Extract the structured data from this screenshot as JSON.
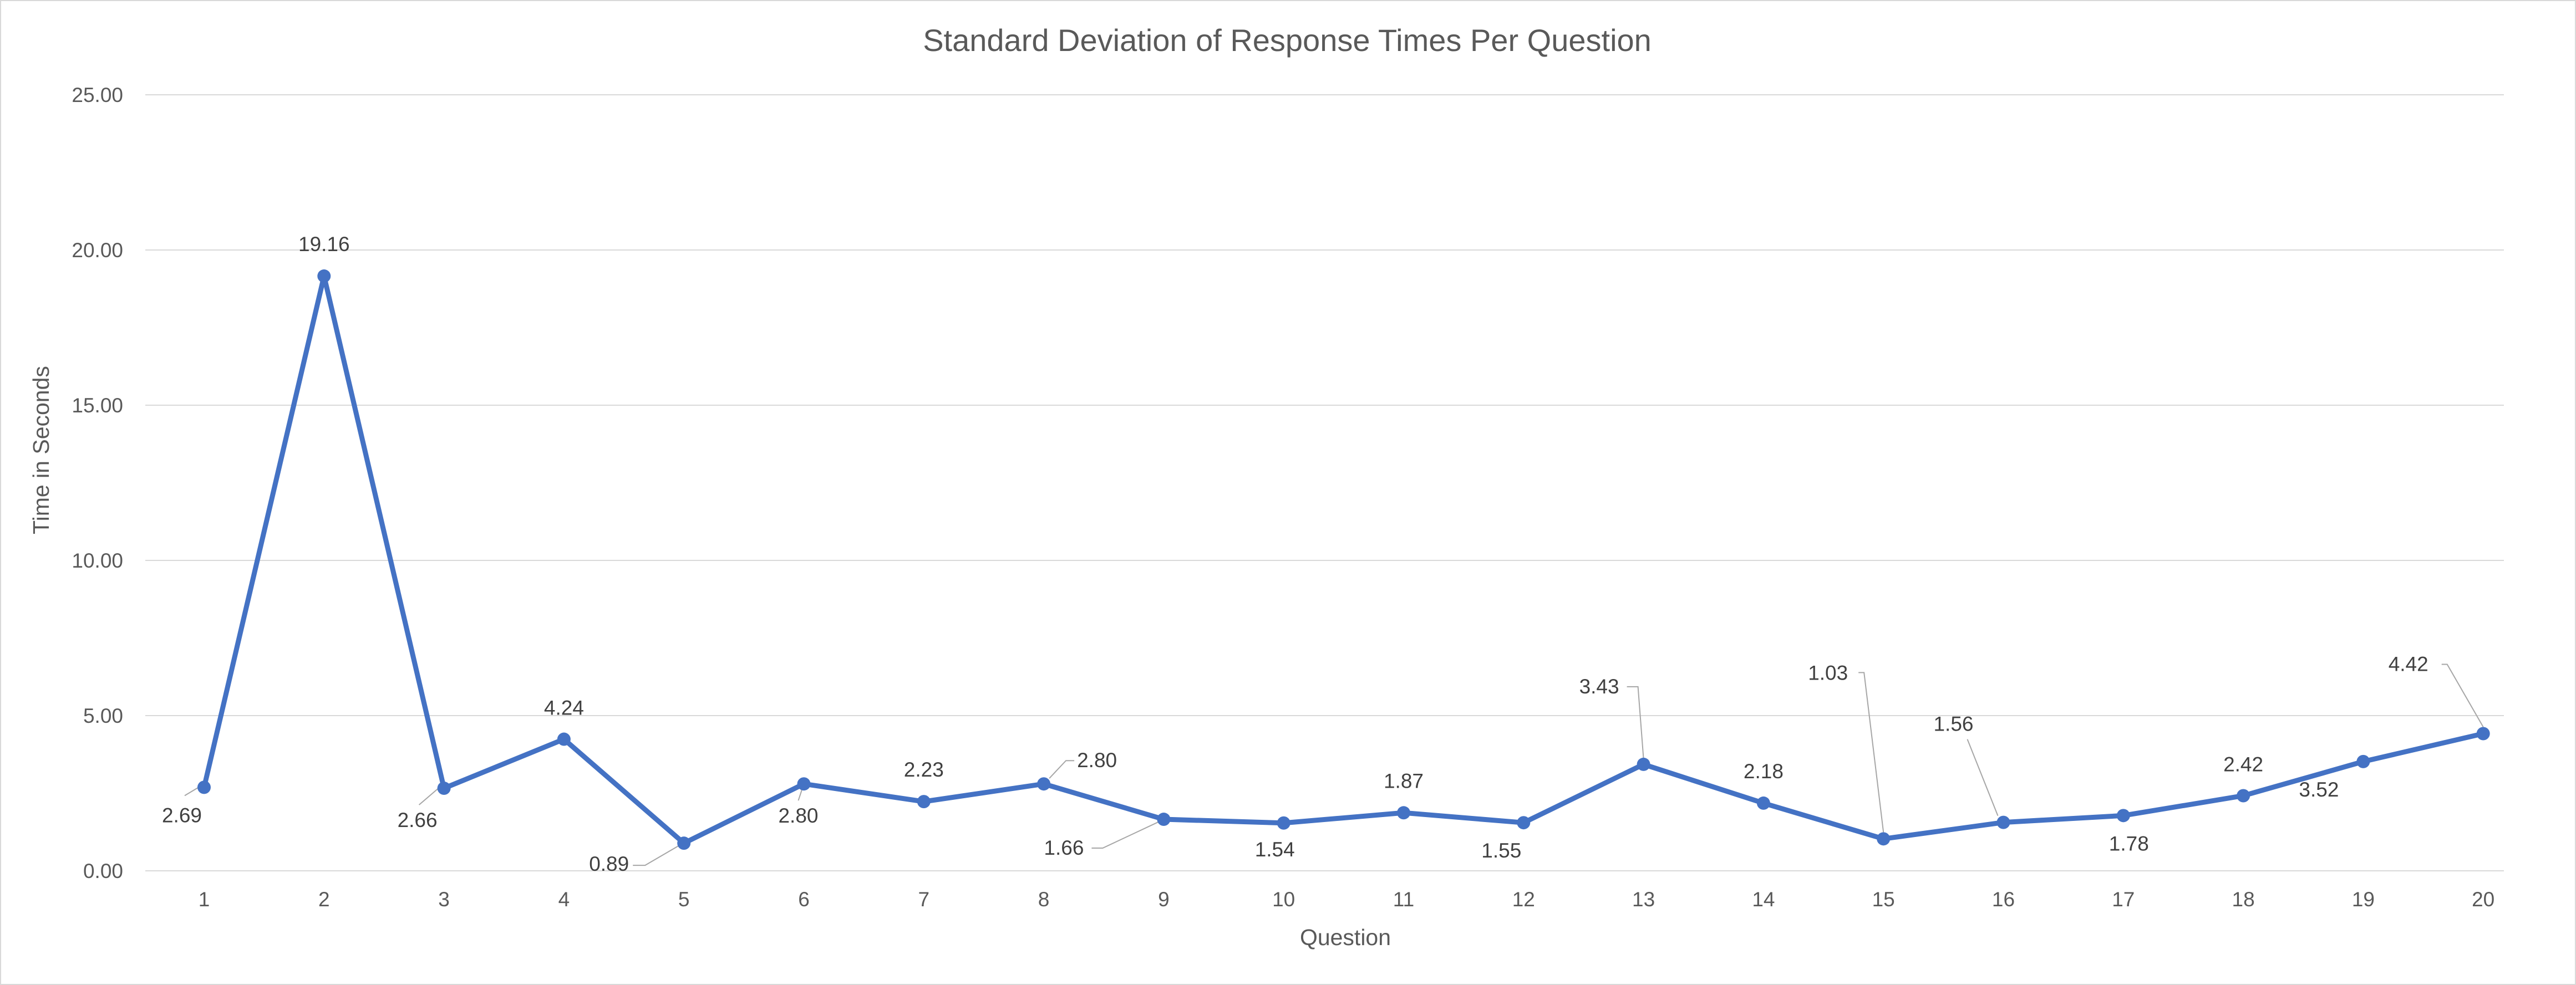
{
  "chart_data": {
    "type": "line",
    "title": "Standard Deviation of Response Times Per Question",
    "xlabel": "Question",
    "ylabel": "Time in Seconds",
    "categories": [
      "1",
      "2",
      "3",
      "4",
      "5",
      "6",
      "7",
      "8",
      "9",
      "10",
      "11",
      "12",
      "13",
      "14",
      "15",
      "16",
      "17",
      "18",
      "19",
      "20"
    ],
    "series": [
      {
        "values": [
          2.69,
          19.16,
          2.66,
          4.24,
          0.89,
          2.8,
          2.23,
          2.8,
          1.66,
          1.54,
          1.87,
          1.55,
          3.43,
          2.18,
          1.03,
          1.56,
          1.78,
          2.42,
          3.52,
          4.42
        ],
        "data_labels": [
          "2.69",
          "19.16",
          "2.66",
          "4.24",
          "0.89",
          "2.80",
          "2.23",
          "2.80",
          "1.66",
          "1.54",
          "1.87",
          "1.55",
          "3.43",
          "2.18",
          "1.03",
          "1.56",
          "1.78",
          "2.42",
          "3.52",
          "4.42"
        ],
        "color": "#4472C4"
      }
    ],
    "ylim": [
      0,
      25
    ],
    "yticks": [
      "0.00",
      "5.00",
      "10.00",
      "15.00",
      "20.00",
      "25.00"
    ],
    "grid": true,
    "legend": "none",
    "colors": {
      "line": "#4472C4",
      "grid": "#d9d9d9",
      "text": "#595959",
      "leader": "#a6a6a6"
    }
  }
}
